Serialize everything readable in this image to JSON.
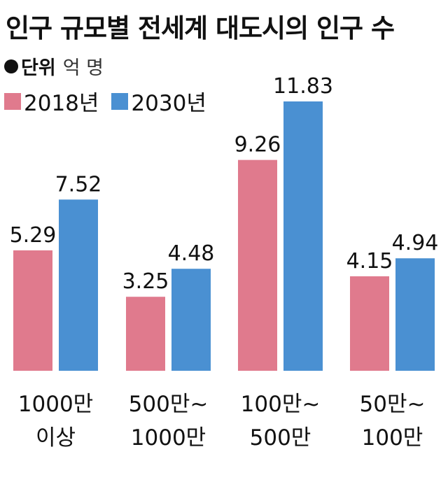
{
  "chart_data": {
    "type": "bar",
    "title": "인구 규모별 전세계 대도시의 인구 수",
    "unit_label": "단위",
    "unit_value": "억 명",
    "categories": [
      [
        "1000만",
        "이상"
      ],
      [
        "500만~",
        "1000만"
      ],
      [
        "100만~",
        "500만"
      ],
      [
        "50만~",
        "100만"
      ]
    ],
    "series": [
      {
        "name": "2018년",
        "color": "#e07a8d",
        "values": [
          5.29,
          3.25,
          9.26,
          4.15
        ],
        "labels": [
          "5.29",
          "3.25",
          "9.26",
          "4.15"
        ]
      },
      {
        "name": "2030년",
        "color": "#4a90d2",
        "values": [
          7.52,
          4.48,
          11.83,
          4.94
        ],
        "labels": [
          "7.52",
          "4.48",
          "11.83",
          "4.94"
        ]
      }
    ],
    "ylim": [
      0,
      11.83
    ],
    "grid": false,
    "legend_position": "top-left"
  }
}
